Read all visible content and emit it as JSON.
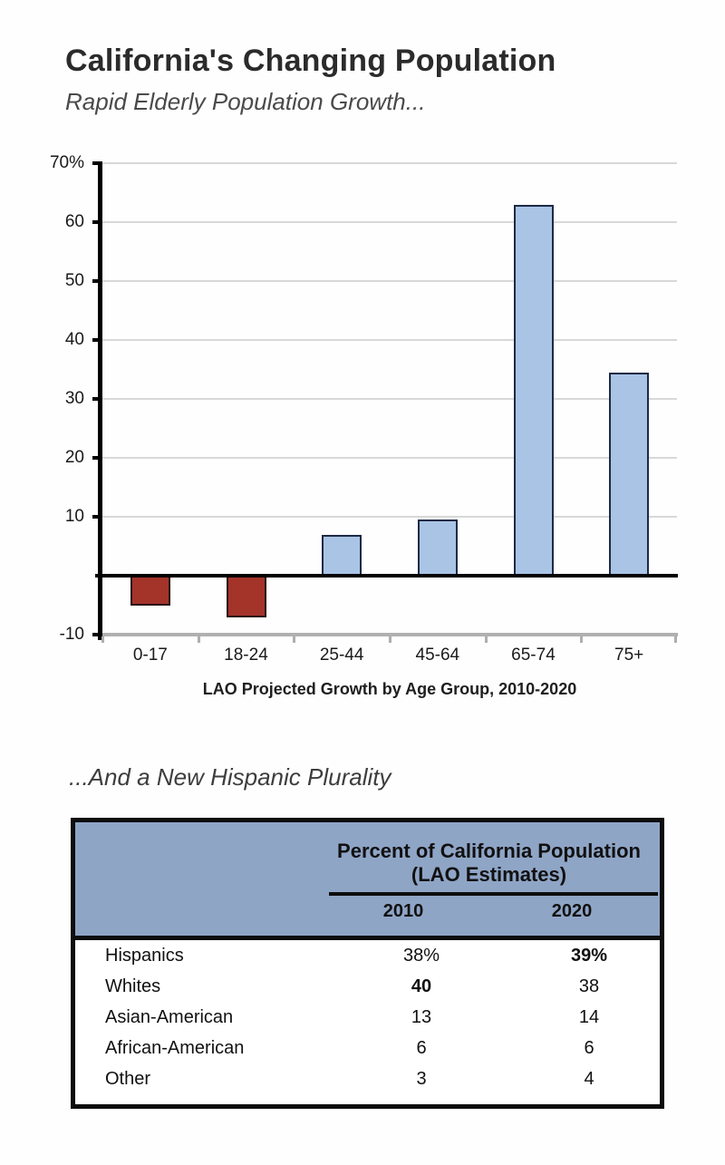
{
  "chart_data": [
    {
      "type": "bar",
      "title": "California's Changing Population",
      "subtitle": "Rapid Elderly Population Growth...",
      "xlabel": "LAO Projected Growth by Age Group, 2010-2020",
      "ylabel": "",
      "categories": [
        "0-17",
        "18-24",
        "25-44",
        "45-64",
        "65-74",
        "75+"
      ],
      "values": [
        -5,
        -7,
        7,
        9.5,
        63,
        34.5
      ],
      "ylim": [
        -10,
        70
      ],
      "yticks": [
        {
          "value": 70,
          "label": "70%"
        },
        {
          "value": 60,
          "label": "60"
        },
        {
          "value": 50,
          "label": "50"
        },
        {
          "value": 40,
          "label": "40"
        },
        {
          "value": 30,
          "label": "30"
        },
        {
          "value": 20,
          "label": "20"
        },
        {
          "value": 10,
          "label": "10"
        },
        {
          "value": -10,
          "label": "-10"
        }
      ],
      "gridline_values": [
        70,
        60,
        50,
        40,
        30,
        20,
        10
      ],
      "grid": true,
      "legend": false,
      "colors": {
        "positive_bar": "#A9C4E5",
        "positive_border": "#1E2A44",
        "negative_bar": "#A4332A",
        "negative_border": "#2A0F0A",
        "zero_line": "#000000",
        "gridline": "#D8D8D8",
        "bottom_axis": "#B0B0B0"
      }
    },
    {
      "type": "table",
      "title": "...And a New Hispanic Plurality",
      "header_title_line1": "Percent of California Population",
      "header_title_line2": "(LAO Estimates)",
      "header_bg": "#8FA5C6",
      "columns": [
        "2010",
        "2020"
      ],
      "rows": [
        {
          "label": "Hispanics",
          "values": [
            "38%",
            "39%"
          ],
          "bold": [
            false,
            true
          ]
        },
        {
          "label": "Whites",
          "values": [
            "40",
            "38"
          ],
          "bold": [
            true,
            false
          ]
        },
        {
          "label": "Asian-American",
          "values": [
            "13",
            "14"
          ],
          "bold": [
            false,
            false
          ]
        },
        {
          "label": "African-American",
          "values": [
            "6",
            "6"
          ],
          "bold": [
            false,
            false
          ]
        },
        {
          "label": "Other",
          "values": [
            "3",
            "4"
          ],
          "bold": [
            false,
            false
          ]
        }
      ]
    }
  ]
}
